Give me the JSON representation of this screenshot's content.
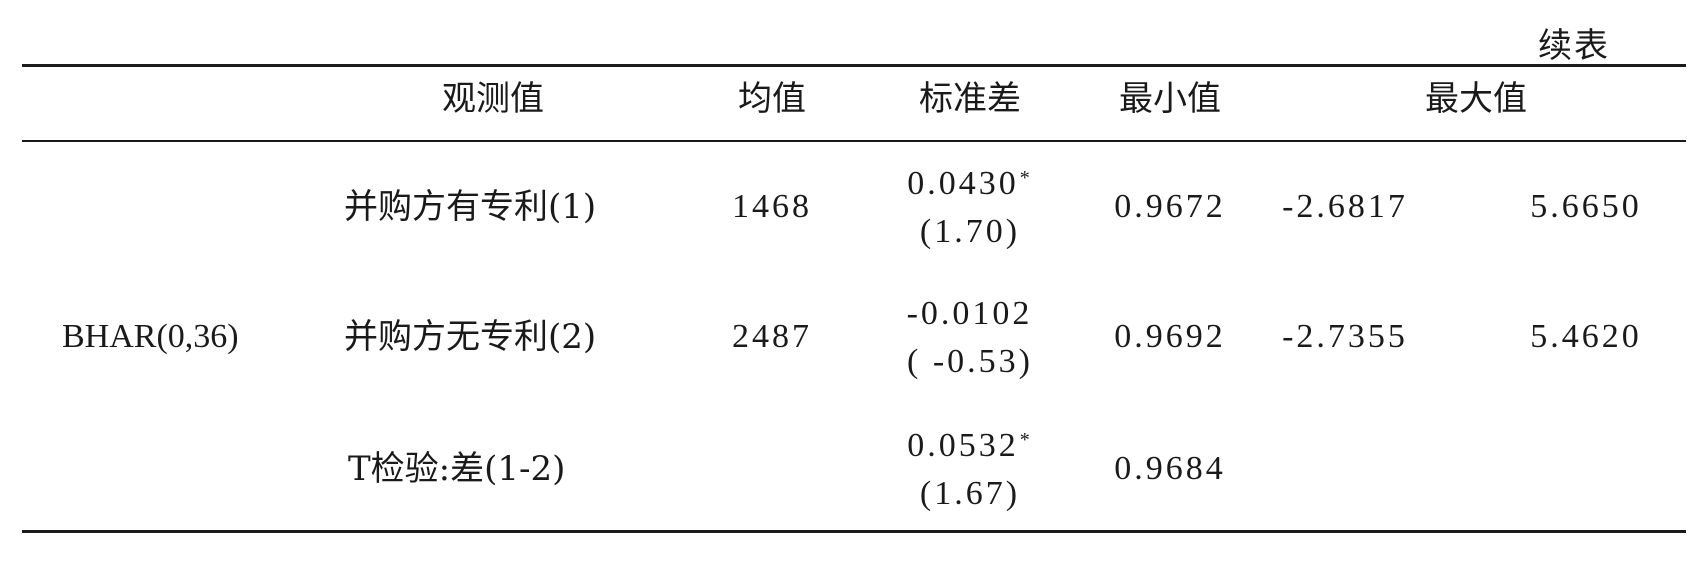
{
  "table": {
    "caption": "续表",
    "headers": {
      "observations": "观测值",
      "mean": "均值",
      "std": "标准差",
      "min": "最小值",
      "max": "最大值"
    },
    "variable": "BHAR(0,36)",
    "rows": [
      {
        "group": "并购方有专利(1)",
        "observations": "1468",
        "mean": "0.0430",
        "mean_mark": "*",
        "t_value": "(1.70)",
        "std": "0.9672",
        "min": "-2.6817",
        "max": "5.6650"
      },
      {
        "group": "并购方无专利(2)",
        "observations": "2487",
        "mean": "-0.0102",
        "mean_mark": "",
        "t_value": "( -0.53)",
        "std": "0.9692",
        "min": "-2.7355",
        "max": "5.4620"
      },
      {
        "group": "T检验:差(1-2)",
        "observations": "",
        "mean": "0.0532",
        "mean_mark": "*",
        "t_value": "(1.67)",
        "std": "0.9684",
        "min": "",
        "max": ""
      }
    ]
  }
}
